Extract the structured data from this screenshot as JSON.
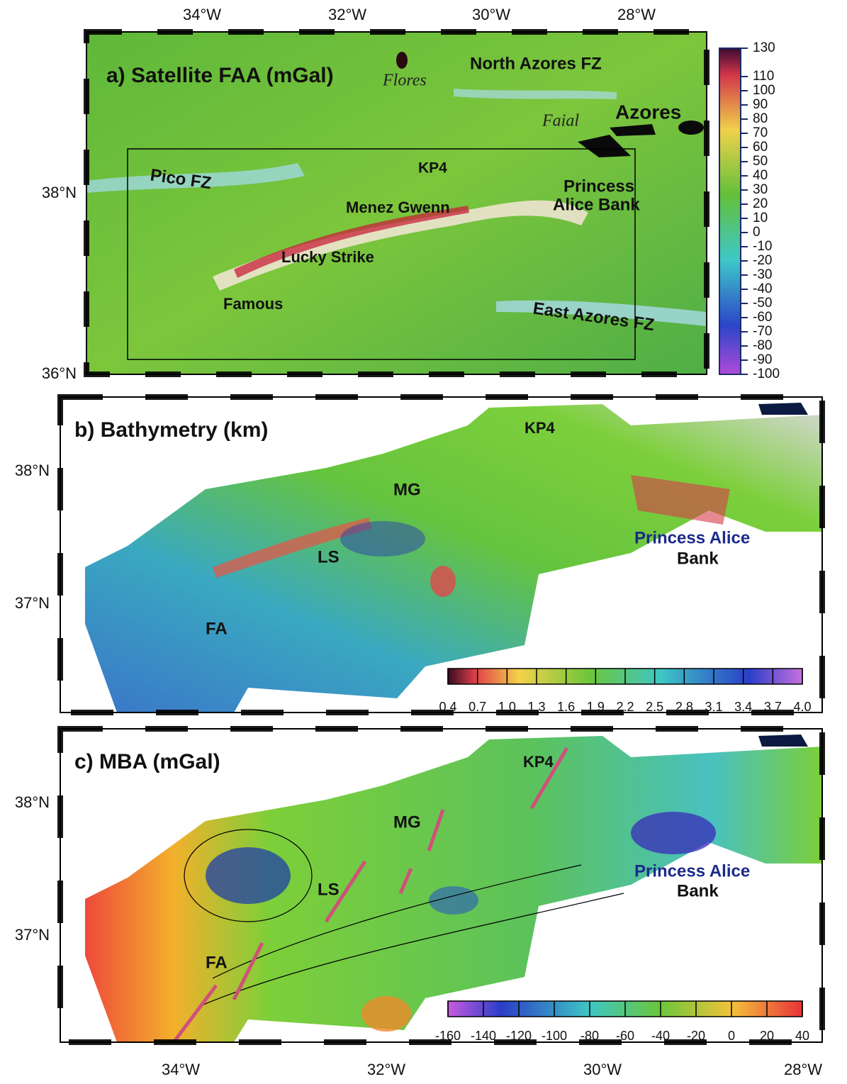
{
  "panels": [
    {
      "title": "a) Satellite FAA (mGal)",
      "top_axis": [
        "34°W",
        "32°W",
        "30°W",
        "28°W"
      ],
      "left_axis": [
        "38°N",
        "36°N"
      ],
      "labels": [
        "Flores",
        "North Azores FZ",
        "Faial",
        "Azores",
        "Pico FZ",
        "KP4",
        "Princess",
        "Alice Bank",
        "Menez Gwenn",
        "Lucky Strike",
        "Famous",
        "East Azores FZ"
      ],
      "colorbar": [
        130,
        110,
        100,
        90,
        80,
        70,
        60,
        50,
        40,
        30,
        20,
        10,
        0,
        -10,
        -20,
        -30,
        -40,
        -50,
        -60,
        -70,
        -80,
        -90,
        -100
      ]
    },
    {
      "title": "b) Bathymetry (km)",
      "left_axis": [
        "38°N",
        "37°N"
      ],
      "labels": [
        "KP4",
        "MG",
        "Princess Alice",
        "Bank",
        "LS",
        "FA"
      ],
      "colorbar": [
        "0.4",
        "0.7",
        "1.0",
        "1.3",
        "1.6",
        "1.9",
        "2.2",
        "2.5",
        "2.8",
        "3.1",
        "3.4",
        "3.7",
        "4.0"
      ]
    },
    {
      "title": "c) MBA (mGal)",
      "left_axis": [
        "38°N",
        "37°N"
      ],
      "bottom_axis": [
        "34°W",
        "32°W",
        "30°W",
        "28°W"
      ],
      "labels": [
        "KP4",
        "MG",
        "Princess Alice",
        "Bank",
        "LS",
        "FA"
      ],
      "colorbar": [
        -160,
        -140,
        -120,
        -100,
        -80,
        -60,
        -40,
        -20,
        0,
        20,
        40
      ]
    }
  ]
}
